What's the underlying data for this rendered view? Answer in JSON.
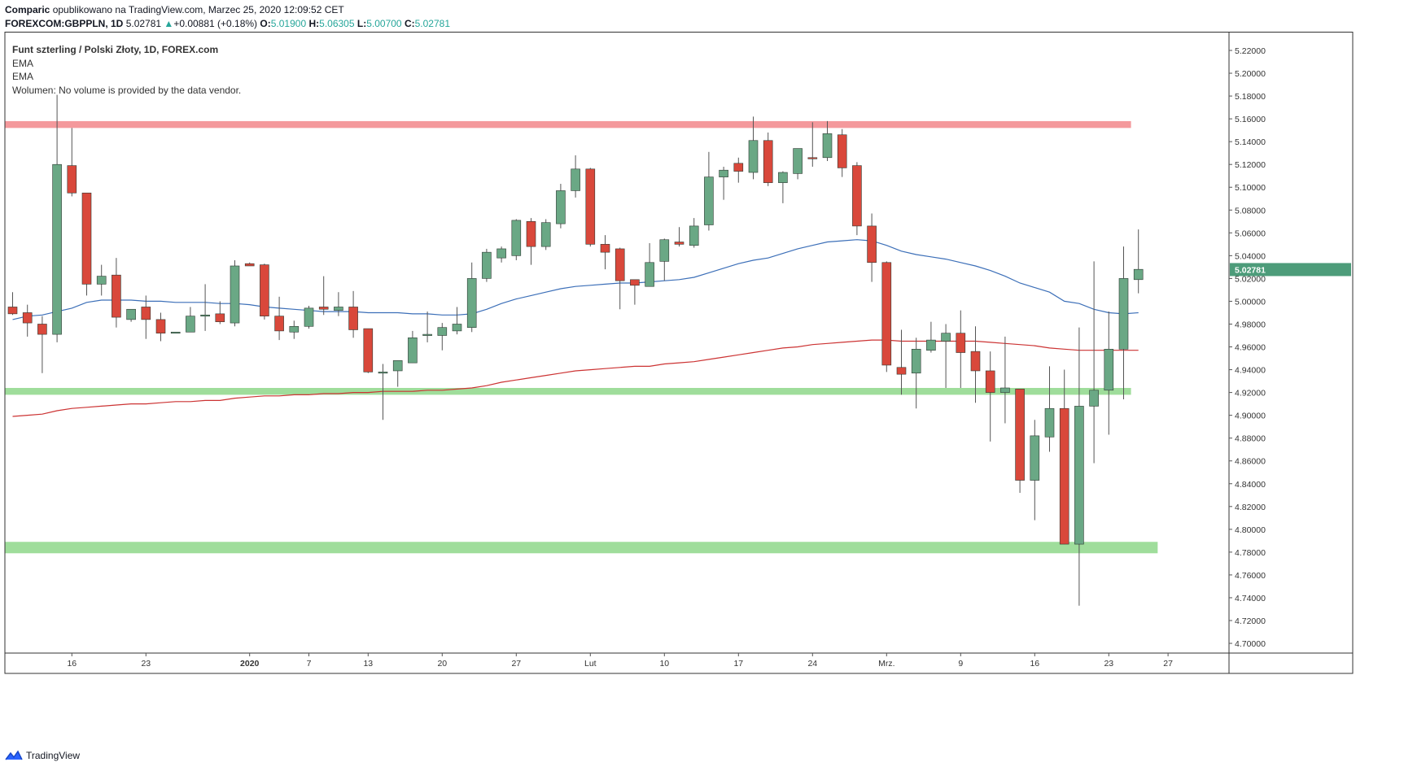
{
  "header": {
    "author": "Comparic",
    "published_text": "opublikowano na TradingView.com, Marzec 25, 2020 12:09:52 CET",
    "symbol": "FOREXCOM:GBPPLN, 1D",
    "last": "5.02781",
    "change_arrow": "▲",
    "change": "+0.00881 (+0.18%)",
    "o_label": "O:",
    "o": "5.01900",
    "h_label": "H:",
    "h": "5.06305",
    "l_label": "L:",
    "l": "5.00700",
    "c_label": "C:",
    "c": "5.02781"
  },
  "legend": {
    "title": "Funt szterling / Polski Złoty, 1D, FOREX.com",
    "ema1": "EMA",
    "ema2": "EMA",
    "volume": "Wolumen: No volume is provided by the data vendor."
  },
  "footer": {
    "brand": "TradingView",
    "logo_icon": "tradingview-logo-icon"
  },
  "colors": {
    "up": "#6aa885",
    "down": "#d9483b",
    "wick": "#555555",
    "ema_fast": "#3c6fb8",
    "ema_slow": "#cc3333",
    "resistance_zone": "#f4999c",
    "support_zone": "#9fdd9b",
    "price_tag": "#4d9c7a"
  },
  "chart_data": {
    "type": "candlestick",
    "symbol": "FOREXCOM:GBPPLN",
    "interval": "1D",
    "ylim": [
      4.69,
      5.23
    ],
    "y_ticks": [
      "5.22000",
      "5.20000",
      "5.18000",
      "5.16000",
      "5.14000",
      "5.12000",
      "5.10000",
      "5.08000",
      "5.06000",
      "5.04000",
      "5.02000",
      "5.00000",
      "4.98000",
      "4.96000",
      "4.94000",
      "4.92000",
      "4.90000",
      "4.88000",
      "4.86000",
      "4.84000",
      "4.82000",
      "4.80000",
      "4.78000",
      "4.76000",
      "4.74000",
      "4.72000",
      "4.70000"
    ],
    "x_ticks": [
      {
        "label": "16",
        "index": 4,
        "bold": false
      },
      {
        "label": "23",
        "index": 9,
        "bold": false
      },
      {
        "label": "2020",
        "index": 16,
        "bold": true
      },
      {
        "label": "7",
        "index": 20,
        "bold": false
      },
      {
        "label": "13",
        "index": 24,
        "bold": false
      },
      {
        "label": "20",
        "index": 29,
        "bold": false
      },
      {
        "label": "27",
        "index": 34,
        "bold": false
      },
      {
        "label": "Lut",
        "index": 39,
        "bold": false
      },
      {
        "label": "10",
        "index": 44,
        "bold": false
      },
      {
        "label": "17",
        "index": 49,
        "bold": false
      },
      {
        "label": "24",
        "index": 54,
        "bold": false
      },
      {
        "label": "Mrz.",
        "index": 59,
        "bold": false
      },
      {
        "label": "9",
        "index": 64,
        "bold": false
      },
      {
        "label": "16",
        "index": 69,
        "bold": false
      },
      {
        "label": "23",
        "index": 74,
        "bold": false
      },
      {
        "label": "27",
        "index": 78,
        "bold": false
      }
    ],
    "last_price": "5.02781",
    "candles": [
      {
        "o": 4.995,
        "h": 5.008,
        "l": 4.988,
        "c": 4.989
      },
      {
        "o": 4.99,
        "h": 4.997,
        "l": 4.969,
        "c": 4.981
      },
      {
        "o": 4.98,
        "h": 4.987,
        "l": 4.937,
        "c": 4.971
      },
      {
        "o": 4.971,
        "h": 5.181,
        "l": 4.964,
        "c": 5.12
      },
      {
        "o": 5.119,
        "h": 5.152,
        "l": 5.092,
        "c": 5.095
      },
      {
        "o": 5.095,
        "h": 5.095,
        "l": 5.005,
        "c": 5.015
      },
      {
        "o": 5.015,
        "h": 5.032,
        "l": 5.005,
        "c": 5.022
      },
      {
        "o": 5.023,
        "h": 5.038,
        "l": 4.977,
        "c": 4.986
      },
      {
        "o": 4.984,
        "h": 4.993,
        "l": 4.982,
        "c": 4.993
      },
      {
        "o": 4.995,
        "h": 5.005,
        "l": 4.967,
        "c": 4.984
      },
      {
        "o": 4.984,
        "h": 4.99,
        "l": 4.965,
        "c": 4.972
      },
      {
        "o": 4.973,
        "h": 4.973,
        "l": 4.973,
        "c": 4.973
      },
      {
        "o": 4.973,
        "h": 4.995,
        "l": 4.973,
        "c": 4.987
      },
      {
        "o": 4.987,
        "h": 5.015,
        "l": 4.974,
        "c": 4.988
      },
      {
        "o": 4.989,
        "h": 5.0,
        "l": 4.98,
        "c": 4.982
      },
      {
        "o": 4.981,
        "h": 5.036,
        "l": 4.978,
        "c": 5.031
      },
      {
        "o": 5.033,
        "h": 5.034,
        "l": 5.031,
        "c": 5.031
      },
      {
        "o": 5.032,
        "h": 5.033,
        "l": 4.984,
        "c": 4.987
      },
      {
        "o": 4.987,
        "h": 5.004,
        "l": 4.966,
        "c": 4.974
      },
      {
        "o": 4.973,
        "h": 4.983,
        "l": 4.967,
        "c": 4.978
      },
      {
        "o": 4.978,
        "h": 4.996,
        "l": 4.976,
        "c": 4.994
      },
      {
        "o": 4.995,
        "h": 5.022,
        "l": 4.988,
        "c": 4.993
      },
      {
        "o": 4.992,
        "h": 5.008,
        "l": 4.987,
        "c": 4.995
      },
      {
        "o": 4.995,
        "h": 5.009,
        "l": 4.968,
        "c": 4.975
      },
      {
        "o": 4.976,
        "h": 4.976,
        "l": 4.937,
        "c": 4.938
      },
      {
        "o": 4.938,
        "h": 4.945,
        "l": 4.896,
        "c": 4.938
      },
      {
        "o": 4.939,
        "h": 4.948,
        "l": 4.925,
        "c": 4.948
      },
      {
        "o": 4.946,
        "h": 4.974,
        "l": 4.946,
        "c": 4.968
      },
      {
        "o": 4.97,
        "h": 4.991,
        "l": 4.964,
        "c": 4.971
      },
      {
        "o": 4.97,
        "h": 4.981,
        "l": 4.957,
        "c": 4.977
      },
      {
        "o": 4.974,
        "h": 4.995,
        "l": 4.971,
        "c": 4.98
      },
      {
        "o": 4.977,
        "h": 5.034,
        "l": 4.973,
        "c": 5.02
      },
      {
        "o": 5.02,
        "h": 5.046,
        "l": 5.017,
        "c": 5.043
      },
      {
        "o": 5.038,
        "h": 5.048,
        "l": 5.034,
        "c": 5.046
      },
      {
        "o": 5.04,
        "h": 5.072,
        "l": 5.036,
        "c": 5.071
      },
      {
        "o": 5.07,
        "h": 5.073,
        "l": 5.032,
        "c": 5.048
      },
      {
        "o": 5.048,
        "h": 5.072,
        "l": 5.045,
        "c": 5.069
      },
      {
        "o": 5.068,
        "h": 5.103,
        "l": 5.064,
        "c": 5.097
      },
      {
        "o": 5.097,
        "h": 5.128,
        "l": 5.091,
        "c": 5.116
      },
      {
        "o": 5.116,
        "h": 5.117,
        "l": 5.048,
        "c": 5.05
      },
      {
        "o": 5.05,
        "h": 5.058,
        "l": 5.028,
        "c": 5.043
      },
      {
        "o": 5.046,
        "h": 5.047,
        "l": 4.993,
        "c": 5.018
      },
      {
        "o": 5.019,
        "h": 5.019,
        "l": 4.997,
        "c": 5.014
      },
      {
        "o": 5.013,
        "h": 5.051,
        "l": 5.013,
        "c": 5.034
      },
      {
        "o": 5.035,
        "h": 5.055,
        "l": 5.018,
        "c": 5.054
      },
      {
        "o": 5.052,
        "h": 5.065,
        "l": 5.048,
        "c": 5.05
      },
      {
        "o": 5.049,
        "h": 5.073,
        "l": 5.047,
        "c": 5.066
      },
      {
        "o": 5.067,
        "h": 5.131,
        "l": 5.062,
        "c": 5.109
      },
      {
        "o": 5.109,
        "h": 5.118,
        "l": 5.089,
        "c": 5.115
      },
      {
        "o": 5.121,
        "h": 5.126,
        "l": 5.104,
        "c": 5.114
      },
      {
        "o": 5.113,
        "h": 5.162,
        "l": 5.107,
        "c": 5.141
      },
      {
        "o": 5.141,
        "h": 5.148,
        "l": 5.101,
        "c": 5.104
      },
      {
        "o": 5.104,
        "h": 5.114,
        "l": 5.086,
        "c": 5.113
      },
      {
        "o": 5.112,
        "h": 5.134,
        "l": 5.107,
        "c": 5.134
      },
      {
        "o": 5.126,
        "h": 5.157,
        "l": 5.118,
        "c": 5.125
      },
      {
        "o": 5.126,
        "h": 5.158,
        "l": 5.123,
        "c": 5.147
      },
      {
        "o": 5.146,
        "h": 5.151,
        "l": 5.109,
        "c": 5.117
      },
      {
        "o": 5.119,
        "h": 5.122,
        "l": 5.058,
        "c": 5.066
      },
      {
        "o": 5.066,
        "h": 5.077,
        "l": 5.017,
        "c": 5.034
      },
      {
        "o": 5.034,
        "h": 5.035,
        "l": 4.938,
        "c": 4.944
      },
      {
        "o": 4.942,
        "h": 4.975,
        "l": 4.918,
        "c": 4.936
      },
      {
        "o": 4.937,
        "h": 4.968,
        "l": 4.906,
        "c": 4.958
      },
      {
        "o": 4.957,
        "h": 4.982,
        "l": 4.955,
        "c": 4.966
      },
      {
        "o": 4.965,
        "h": 4.98,
        "l": 4.924,
        "c": 4.972
      },
      {
        "o": 4.972,
        "h": 4.992,
        "l": 4.924,
        "c": 4.955
      },
      {
        "o": 4.956,
        "h": 4.978,
        "l": 4.911,
        "c": 4.939
      },
      {
        "o": 4.939,
        "h": 4.956,
        "l": 4.877,
        "c": 4.92
      },
      {
        "o": 4.92,
        "h": 4.969,
        "l": 4.893,
        "c": 4.924
      },
      {
        "o": 4.923,
        "h": 4.923,
        "l": 4.832,
        "c": 4.843
      },
      {
        "o": 4.843,
        "h": 4.896,
        "l": 4.808,
        "c": 4.882
      },
      {
        "o": 4.881,
        "h": 4.943,
        "l": 4.868,
        "c": 4.906
      },
      {
        "o": 4.906,
        "h": 4.94,
        "l": 4.787,
        "c": 4.787
      },
      {
        "o": 4.787,
        "h": 4.977,
        "l": 4.733,
        "c": 4.908
      },
      {
        "o": 4.908,
        "h": 5.035,
        "l": 4.858,
        "c": 4.922
      },
      {
        "o": 4.922,
        "h": 4.991,
        "l": 4.883,
        "c": 4.958
      },
      {
        "o": 4.958,
        "h": 5.048,
        "l": 4.914,
        "c": 5.02
      },
      {
        "o": 5.019,
        "h": 5.063,
        "l": 5.007,
        "c": 5.028
      }
    ],
    "ema_fast": [
      4.984,
      4.987,
      4.988,
      4.991,
      4.994,
      4.999,
      5.001,
      5.001,
      5.001,
      5.0,
      5.0,
      4.999,
      4.999,
      4.999,
      4.998,
      4.998,
      4.997,
      4.995,
      4.994,
      4.993,
      4.992,
      4.991,
      4.991,
      4.991,
      4.99,
      4.99,
      4.99,
      4.989,
      4.989,
      4.988,
      4.988,
      4.989,
      4.993,
      4.998,
      5.002,
      5.005,
      5.008,
      5.011,
      5.013,
      5.014,
      5.015,
      5.016,
      5.016,
      5.017,
      5.018,
      5.019,
      5.021,
      5.025,
      5.029,
      5.033,
      5.036,
      5.038,
      5.042,
      5.046,
      5.049,
      5.052,
      5.053,
      5.054,
      5.053,
      5.049,
      5.044,
      5.041,
      5.039,
      5.037,
      5.034,
      5.031,
      5.027,
      5.022,
      5.016,
      5.012,
      5.008,
      5.0,
      4.998,
      4.993,
      4.99,
      4.989,
      4.99
    ],
    "ema_slow": [
      4.899,
      4.9,
      4.901,
      4.904,
      4.906,
      4.907,
      4.908,
      4.909,
      4.91,
      4.91,
      4.911,
      4.912,
      4.912,
      4.913,
      4.913,
      4.915,
      4.916,
      4.917,
      4.917,
      4.918,
      4.918,
      4.919,
      4.919,
      4.92,
      4.92,
      4.921,
      4.921,
      4.921,
      4.922,
      4.922,
      4.923,
      4.924,
      4.926,
      4.929,
      4.931,
      4.933,
      4.935,
      4.937,
      4.939,
      4.94,
      4.941,
      4.942,
      4.943,
      4.943,
      4.945,
      4.946,
      4.947,
      4.949,
      4.951,
      4.953,
      4.955,
      4.957,
      4.959,
      4.96,
      4.962,
      4.963,
      4.964,
      4.965,
      4.966,
      4.966,
      4.965,
      4.965,
      4.965,
      4.965,
      4.965,
      4.965,
      4.964,
      4.963,
      4.962,
      4.961,
      4.959,
      4.958,
      4.957,
      4.957,
      4.957,
      4.957,
      4.957
    ],
    "zones": [
      {
        "name": "resistance",
        "from": 5.152,
        "to": 5.158,
        "start_index": 0,
        "end_index": 75.5,
        "color": "#f4999c"
      },
      {
        "name": "support-upper",
        "from": 4.918,
        "to": 4.924,
        "start_index": 0,
        "end_index": 75.5,
        "color": "#9fdd9b"
      },
      {
        "name": "support-lower",
        "from": 4.779,
        "to": 4.789,
        "start_index": 0,
        "end_index": 77.3,
        "color": "#9fdd9b"
      }
    ]
  }
}
